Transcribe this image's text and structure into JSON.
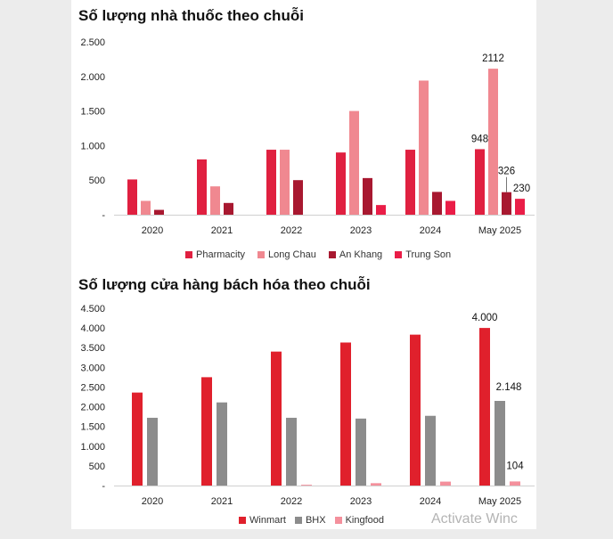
{
  "chart_data": [
    {
      "type": "bar",
      "title": "Số lượng nhà thuốc theo chuỗi",
      "categories": [
        "2020",
        "2021",
        "2022",
        "2023",
        "2024",
        "May 2025"
      ],
      "yticks": [
        "2.500",
        "2.000",
        "1.500",
        "1.000",
        "500",
        "-"
      ],
      "ylim": [
        0,
        2500
      ],
      "series": [
        {
          "name": "Pharmacity",
          "color": "#e02040",
          "values": [
            510,
            800,
            940,
            900,
            940,
            948
          ]
        },
        {
          "name": "Long Chau",
          "color": "#f08890",
          "values": [
            200,
            410,
            940,
            1500,
            1940,
            2112
          ]
        },
        {
          "name": "An Khang",
          "color": "#a81830",
          "values": [
            70,
            170,
            500,
            530,
            330,
            326
          ]
        },
        {
          "name": "Trung Son",
          "color": "#ea1d47",
          "values": [
            0,
            0,
            0,
            140,
            200,
            230
          ]
        }
      ],
      "data_labels": [
        {
          "series": 0,
          "category": 5,
          "text": "948"
        },
        {
          "series": 1,
          "category": 5,
          "text": "2112"
        },
        {
          "series": 2,
          "category": 5,
          "text": "326"
        },
        {
          "series": 3,
          "category": 5,
          "text": "230"
        }
      ]
    },
    {
      "type": "bar",
      "title": "Số lượng cửa hàng bách hóa theo chuỗi",
      "categories": [
        "2020",
        "2021",
        "2022",
        "2023",
        "2024",
        "May 2025"
      ],
      "yticks": [
        "4.500",
        "4.000",
        "3.500",
        "3.000",
        "2.500",
        "2.000",
        "1.500",
        "1.000",
        "500",
        "-"
      ],
      "ylim": [
        0,
        4500
      ],
      "series": [
        {
          "name": "Winmart",
          "color": "#e0202c",
          "values": [
            2360,
            2750,
            3400,
            3630,
            3830,
            4000
          ]
        },
        {
          "name": "BHX",
          "color": "#8c8c8c",
          "values": [
            1720,
            2110,
            1720,
            1700,
            1770,
            2148
          ]
        },
        {
          "name": "Kingfood",
          "color": "#f4909c",
          "values": [
            0,
            0,
            20,
            60,
            100,
            104
          ]
        }
      ],
      "data_labels": [
        {
          "series": 0,
          "category": 5,
          "text": "4.000"
        },
        {
          "series": 1,
          "category": 5,
          "text": "2.148"
        },
        {
          "series": 2,
          "category": 5,
          "text": "104"
        }
      ]
    }
  ],
  "watermark": "Activate Winc"
}
